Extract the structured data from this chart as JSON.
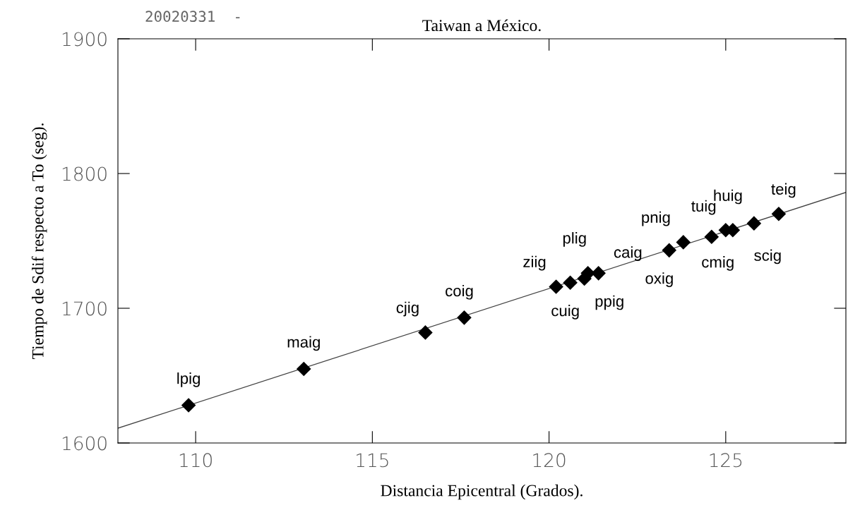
{
  "chart_data": {
    "type": "scatter",
    "title": "Taiwan a México.",
    "xlabel": "Distancia Epicentral (Grados).",
    "ylabel": "Tiempo de Sdif respecto a To (seg).",
    "xlim": [
      107.8,
      128.4
    ],
    "xticks": [
      110,
      115,
      120,
      125
    ],
    "ylim": [
      1600,
      1900
    ],
    "yticks": [
      1600,
      1700,
      1800,
      1900
    ],
    "grid": false,
    "legend": false,
    "marker": "diamond",
    "series": [
      {
        "color": "#000000",
        "x": [
          109.8,
          113.06,
          116.5,
          117.6,
          120.2,
          120.6,
          121.0,
          121.1,
          121.4,
          123.4,
          123.8,
          124.6,
          125.0,
          125.2,
          125.8,
          126.5
        ],
        "values": [
          1628,
          1655,
          1682,
          1693,
          1716,
          1719,
          1722,
          1726,
          1726,
          1743,
          1749,
          1753,
          1758,
          1758,
          1763,
          1770
        ]
      },
      {
        "type": "line",
        "color": "#000000",
        "marker": "none",
        "x": [
          107.8,
          128.4
        ],
        "values": [
          1611,
          1786
        ]
      }
    ],
    "annotations": [
      "20020331  -",
      {
        "text": "lpig",
        "x": 109.8,
        "y": 1628
      },
      {
        "text": "maig",
        "x": 113.06,
        "y": 1655
      },
      {
        "text": "cjig",
        "x": 116.5,
        "y": 1682
      },
      {
        "text": "coig",
        "x": 117.6,
        "y": 1693
      },
      {
        "text": "ziig",
        "x": 120.2,
        "y": 1716
      },
      {
        "text": "cuig",
        "x": 120.6,
        "y": 1719
      },
      {
        "text": "plig",
        "x": 121.0,
        "y": 1722
      },
      {
        "text": "ppig",
        "x": 121.1,
        "y": 1726
      },
      {
        "text": "caig",
        "x": 121.4,
        "y": 1726
      },
      {
        "text": "oxig",
        "x": 123.4,
        "y": 1743
      },
      {
        "text": "pnig",
        "x": 123.8,
        "y": 1749
      },
      {
        "text": "tuig",
        "x": 124.6,
        "y": 1753
      },
      {
        "text": "cmig",
        "x": 125.0,
        "y": 1758
      },
      {
        "text": "huig",
        "x": 125.2,
        "y": 1758
      },
      {
        "text": "scig",
        "x": 125.8,
        "y": 1763
      },
      {
        "text": "teig",
        "x": 126.5,
        "y": 1770
      }
    ]
  }
}
